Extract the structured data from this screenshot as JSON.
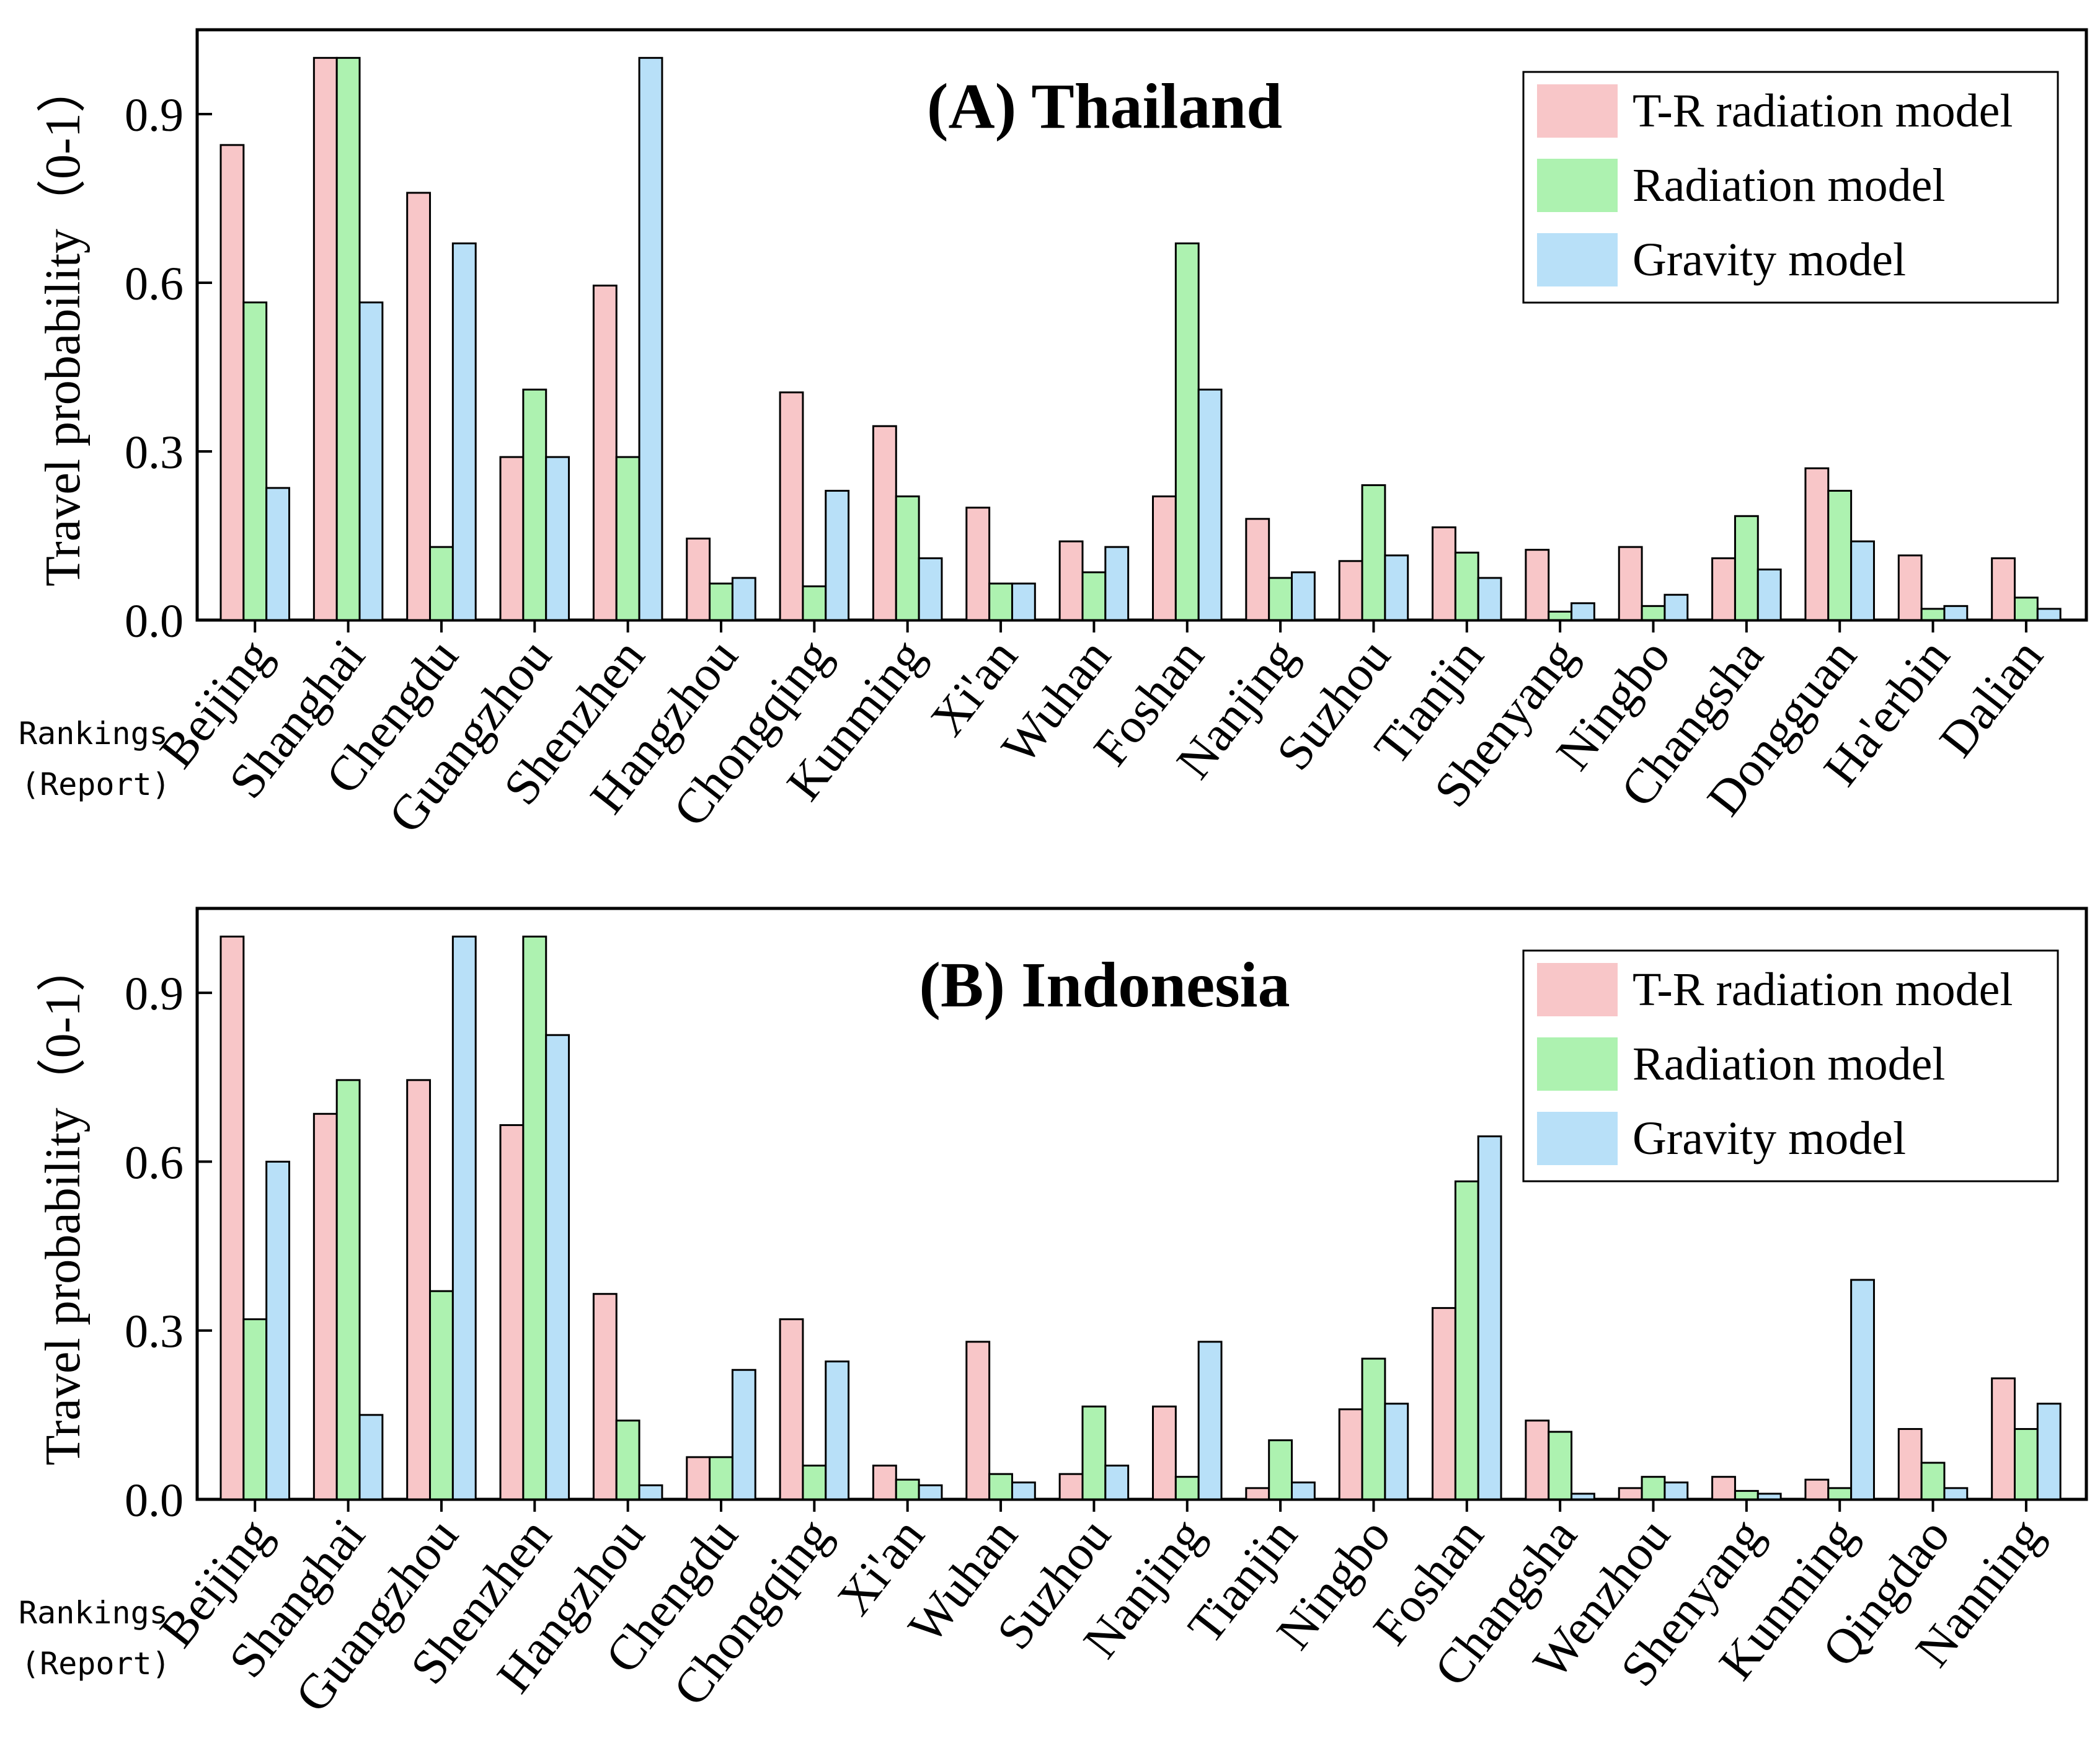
{
  "colors": {
    "tr_radiation": "#f8c6c8",
    "radiation": "#adf2b0",
    "gravity": "#b8e0f8"
  },
  "side_label": [
    "Rankings",
    "(Report)"
  ],
  "chart_data": [
    {
      "type": "bar",
      "title": "(A) Thailand",
      "xlabel": "",
      "ylabel": "Travel probability（0-1）",
      "ylim": [
        0,
        1.05
      ],
      "yticks": [
        "0.0",
        "0.3",
        "0.6",
        "0.9"
      ],
      "ytick_values": [
        0,
        0.3,
        0.6,
        0.9
      ],
      "grid": false,
      "legend_position": "top-right",
      "categories": [
        "Beijing",
        "Shanghai",
        "Chengdu",
        "Guangzhou",
        "Shenzhen",
        "Hangzhou",
        "Chongqing",
        "Kunming",
        "Xi'an",
        "Wuhan",
        "Foshan",
        "Nanjing",
        "Suzhou",
        "Tianjin",
        "Shenyang",
        "Ningbo",
        "Changsha",
        "Dongguan",
        "Ha'erbin",
        "Dalian"
      ],
      "series": [
        {
          "name": "T-R radiation model",
          "values": [
            0.845,
            1.0,
            0.76,
            0.29,
            0.595,
            0.145,
            0.405,
            0.345,
            0.2,
            0.14,
            0.22,
            0.18,
            0.105,
            0.165,
            0.125,
            0.13,
            0.11,
            0.27,
            0.115,
            0.11
          ]
        },
        {
          "name": "Radiation model",
          "values": [
            0.565,
            1.0,
            0.13,
            0.41,
            0.29,
            0.065,
            0.06,
            0.22,
            0.065,
            0.085,
            0.67,
            0.075,
            0.24,
            0.12,
            0.015,
            0.025,
            0.185,
            0.23,
            0.02,
            0.04
          ]
        },
        {
          "name": "Gravity model",
          "values": [
            0.235,
            0.565,
            0.67,
            0.29,
            1.0,
            0.075,
            0.23,
            0.11,
            0.065,
            0.13,
            0.41,
            0.085,
            0.115,
            0.075,
            0.03,
            0.045,
            0.09,
            0.14,
            0.025,
            0.02
          ]
        }
      ]
    },
    {
      "type": "bar",
      "title": "(B) Indonesia",
      "xlabel": "",
      "ylabel": "Travel probability（0-1）",
      "ylim": [
        0,
        1.05
      ],
      "yticks": [
        "0.0",
        "0.3",
        "0.6",
        "0.9"
      ],
      "ytick_values": [
        0,
        0.3,
        0.6,
        0.9
      ],
      "grid": false,
      "legend_position": "top-right",
      "categories": [
        "Beijing",
        "Shanghai",
        "Guangzhou",
        "Shenzhen",
        "Hangzhou",
        "Chengdu",
        "Chongqing",
        "Xi'an",
        "Wuhan",
        "Suzhou",
        "Nanjing",
        "Tianjin",
        "Ningbo",
        "Foshan",
        "Changsha",
        "Wenzhou",
        "Shenyang",
        "Kunming",
        "Qingdao",
        "Nanning"
      ],
      "series": [
        {
          "name": "T-R radiation model",
          "values": [
            1.0,
            0.685,
            0.745,
            0.665,
            0.365,
            0.075,
            0.32,
            0.06,
            0.28,
            0.045,
            0.165,
            0.02,
            0.16,
            0.34,
            0.14,
            0.02,
            0.04,
            0.035,
            0.125,
            0.215
          ]
        },
        {
          "name": "Radiation model",
          "values": [
            0.32,
            0.745,
            0.37,
            1.0,
            0.14,
            0.075,
            0.06,
            0.035,
            0.045,
            0.165,
            0.04,
            0.105,
            0.25,
            0.565,
            0.12,
            0.04,
            0.015,
            0.02,
            0.065,
            0.125
          ]
        },
        {
          "name": "Gravity model",
          "values": [
            0.6,
            0.15,
            1.0,
            0.825,
            0.025,
            0.23,
            0.245,
            0.025,
            0.03,
            0.06,
            0.28,
            0.03,
            0.17,
            0.645,
            0.01,
            0.03,
            0.01,
            0.39,
            0.02,
            0.17
          ]
        }
      ]
    }
  ]
}
